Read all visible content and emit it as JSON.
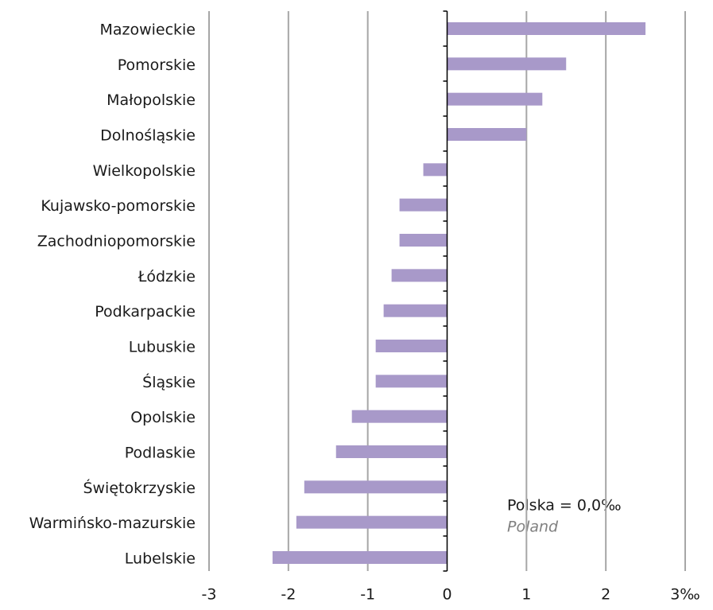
{
  "chart_data": {
    "type": "bar",
    "orientation": "horizontal",
    "categories": [
      "Mazowieckie",
      "Pomorskie",
      "Małopolskie",
      "Dolnośląskie",
      "Wielkopolskie",
      "Kujawsko-pomorskie",
      "Zachodniopomorskie",
      "Łódzkie",
      "Podkarpackie",
      "Lubuskie",
      "Śląskie",
      "Opolskie",
      "Podlaskie",
      "Świętokrzyskie",
      "Warmińsko-mazurskie",
      "Lubelskie"
    ],
    "values": [
      2.5,
      1.5,
      1.2,
      1.0,
      -0.3,
      -0.6,
      -0.6,
      -0.7,
      -0.8,
      -0.9,
      -0.9,
      -1.2,
      -1.4,
      -1.8,
      -1.9,
      -2.2
    ],
    "color": "#a899c9",
    "xlim": [
      -3,
      3
    ],
    "xticks": [
      -3,
      -2,
      -1,
      0,
      1,
      2,
      {
        "value": 3,
        "label": "3‰"
      }
    ],
    "grid": true,
    "annotations": [
      "Polska = 0,0‰",
      "Poland"
    ]
  }
}
